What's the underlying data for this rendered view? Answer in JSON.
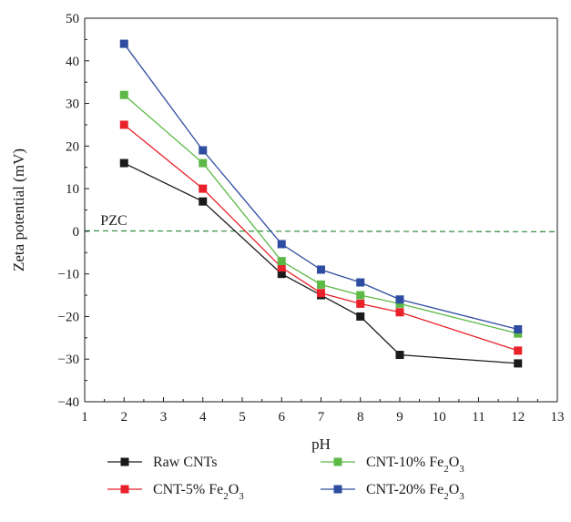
{
  "chart_data": {
    "type": "line",
    "title": "",
    "xlabel": "pH",
    "ylabel": "Zeta potential (mV)",
    "xlim": [
      1,
      13
    ],
    "ylim": [
      -40,
      50
    ],
    "x_ticks": [
      1,
      2,
      3,
      4,
      5,
      6,
      7,
      8,
      9,
      10,
      11,
      12,
      13
    ],
    "y_ticks": [
      -40,
      -30,
      -20,
      -10,
      0,
      10,
      20,
      30,
      40,
      50
    ],
    "x_tick_labels": [
      "1",
      "2",
      "3",
      "4",
      "5",
      "6",
      "7",
      "8",
      "9",
      "10",
      "11",
      "12",
      "13"
    ],
    "y_tick_labels": [
      "−40",
      "−30",
      "−20",
      "−10",
      "0",
      "10",
      "20",
      "30",
      "40",
      "50"
    ],
    "grid": false,
    "legend_position": "bottom",
    "x": [
      2,
      4,
      6,
      7,
      8,
      9,
      12
    ],
    "series": [
      {
        "name": "Raw CNTs",
        "color": "#1a1a1a",
        "values": [
          16,
          7,
          -10,
          -15,
          -20,
          -29,
          -31
        ]
      },
      {
        "name": "CNT-5% Fe2O3",
        "label_parts": {
          "pre": "CNT-5% Fe",
          "sub1": "2",
          "mid": "O",
          "sub2": "3"
        },
        "color": "#e8212a",
        "values": [
          25,
          10,
          -8.5,
          -14.5,
          -17,
          -19,
          -28
        ]
      },
      {
        "name": "CNT-10% Fe2O3",
        "label_parts": {
          "pre": "CNT-10% Fe",
          "sub1": "2",
          "mid": "O",
          "sub2": "3"
        },
        "color": "#5cb946",
        "values": [
          32,
          16,
          -7,
          -12.5,
          -15,
          -17,
          -24
        ]
      },
      {
        "name": "CNT-20% Fe2O3",
        "label_parts": {
          "pre": "CNT-20% Fe",
          "sub1": "2",
          "mid": "O",
          "sub2": "3"
        },
        "color": "#2e4da0",
        "values": [
          44,
          19,
          -3,
          -9,
          -12,
          -16,
          -23
        ]
      }
    ],
    "reference_line": {
      "label": "PZC",
      "y": 0,
      "color": "#2e8b3e",
      "style": "dashed"
    }
  }
}
